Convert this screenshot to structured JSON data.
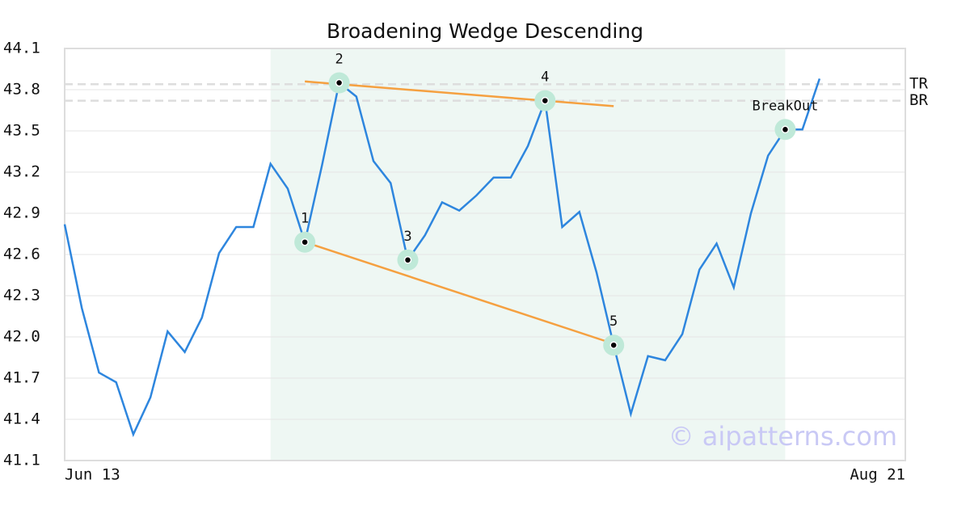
{
  "chart_data": {
    "type": "line",
    "title": "Broadening Wedge Descending",
    "color": "#2e86de",
    "values": [
      42.82,
      42.21,
      41.74,
      41.67,
      41.29,
      41.56,
      42.04,
      41.89,
      42.14,
      42.61,
      42.8,
      42.8,
      43.26,
      43.08,
      42.69,
      43.25,
      43.85,
      43.75,
      43.28,
      43.12,
      42.56,
      42.74,
      42.98,
      42.92,
      43.03,
      43.16,
      43.16,
      43.39,
      43.72,
      42.8,
      42.91,
      42.47,
      41.94,
      41.44,
      41.86,
      41.83,
      42.02,
      42.49,
      42.68,
      42.36,
      42.9,
      43.32,
      43.51,
      43.51,
      43.88
    ],
    "xlim": [
      0,
      49
    ],
    "xticks": [
      {
        "value": 0,
        "label": "Jun 13"
      },
      {
        "value": 49,
        "label": "Aug 21"
      }
    ],
    "ylim": [
      41.1,
      44.1
    ],
    "yticks": [
      41.1,
      41.4,
      41.7,
      {
        "value": 42,
        "label": "42.0"
      },
      42.3,
      42.6,
      42.9,
      43.2,
      43.5,
      43.8,
      44.1
    ],
    "grid": true,
    "highlight_range": [
      12,
      42
    ],
    "trend_lines": [
      {
        "x": [
          14,
          32
        ],
        "values": [
          43.86,
          43.68
        ],
        "color": "#f5a040"
      },
      {
        "x": [
          14,
          32
        ],
        "values": [
          42.69,
          41.95
        ],
        "color": "#f5a040"
      }
    ],
    "levels": [
      {
        "name": "TR",
        "value": 43.84
      },
      {
        "name": "BR",
        "value": 43.72
      }
    ],
    "pattern_points": [
      {
        "label": "1",
        "index": 14
      },
      {
        "label": "2",
        "index": 16
      },
      {
        "label": "3",
        "index": 20
      },
      {
        "label": "4",
        "index": 28
      },
      {
        "label": "5",
        "index": 32
      },
      {
        "label": "BreakOut",
        "index": 42
      }
    ],
    "watermark": "© aipatterns.com"
  }
}
